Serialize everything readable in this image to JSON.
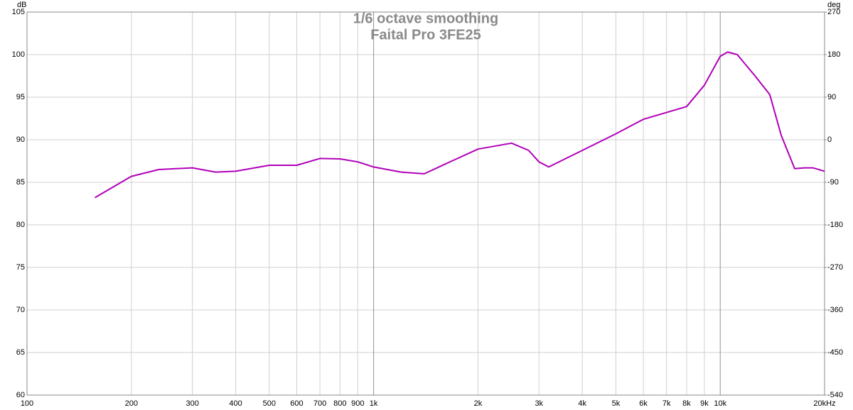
{
  "chart_data": {
    "type": "line",
    "title": "1/6 octave smoothing",
    "subtitle": "Faital Pro 3FE25",
    "y_label": "dB",
    "y2_label": "deg",
    "x_log": true,
    "grid": true,
    "x": [
      157,
      200,
      240,
      300,
      350,
      400,
      500,
      600,
      700,
      800,
      900,
      1000,
      1200,
      1400,
      1600,
      2000,
      2500,
      2800,
      3000,
      3200,
      4000,
      5000,
      6000,
      7000,
      8000,
      9000,
      10000,
      10500,
      11200,
      12600,
      13900,
      15000,
      16400,
      17500,
      18500,
      20000
    ],
    "series": [
      {
        "name": "Faital Pro 3FE25",
        "color": "#b000b8",
        "values": [
          83.2,
          85.7,
          86.5,
          86.7,
          86.2,
          86.3,
          87.0,
          87.0,
          87.8,
          87.75,
          87.4,
          86.8,
          86.2,
          86.0,
          87.1,
          88.9,
          89.6,
          88.75,
          87.4,
          86.8,
          88.75,
          90.7,
          92.4,
          93.2,
          93.9,
          96.4,
          99.8,
          100.3,
          100.0,
          97.5,
          95.3,
          90.5,
          86.6,
          86.7,
          86.7,
          86.3
        ]
      }
    ],
    "xlim": [
      100,
      20000
    ],
    "xticks": [
      100,
      200,
      300,
      400,
      500,
      600,
      700,
      800,
      900,
      {
        "value": 1000,
        "label": "1k"
      },
      {
        "value": 2000,
        "label": "2k"
      },
      {
        "value": 3000,
        "label": "3k"
      },
      {
        "value": 4000,
        "label": "4k"
      },
      {
        "value": 5000,
        "label": "5k"
      },
      {
        "value": 6000,
        "label": "6k"
      },
      {
        "value": 7000,
        "label": "7k"
      },
      {
        "value": 8000,
        "label": "8k"
      },
      {
        "value": 9000,
        "label": "9k"
      },
      {
        "value": 10000,
        "label": "10k"
      },
      {
        "value": 20000,
        "label": "20kHz"
      }
    ],
    "ylim": [
      60,
      105
    ],
    "yticks": [
      60,
      65,
      70,
      75,
      80,
      85,
      90,
      95,
      100,
      105
    ],
    "y2lim": [
      -540,
      270
    ],
    "y2ticks": [
      -540,
      -450,
      -360,
      -270,
      -180,
      -90,
      0,
      90,
      180,
      270
    ]
  }
}
